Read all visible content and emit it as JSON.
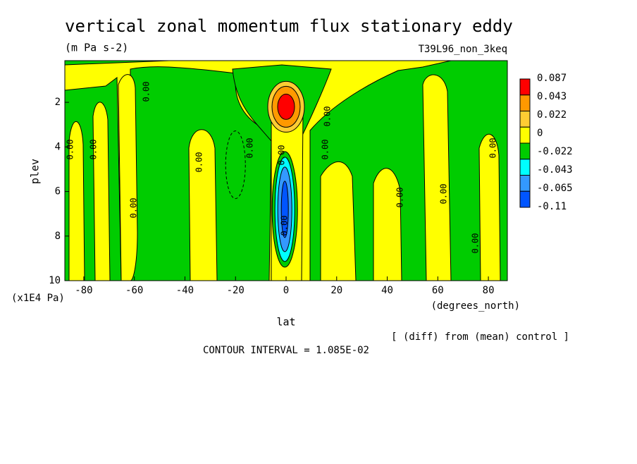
{
  "chart_data": {
    "type": "contour",
    "title": "vertical zonal momentum flux stationary eddy",
    "subtitle": "(m Pa s-2)",
    "run_label": "T39L96_non_3keq",
    "x_label": "lat",
    "x_unit": "(degrees_north)",
    "y_label": "plev",
    "y_unit": "(x1E4 Pa)",
    "note": "[ (diff) from (mean) control ]",
    "contour_interval": "CONTOUR INTERVAL = 1.085E-02",
    "xlim": [
      -87.5,
      87.5
    ],
    "xticks": [
      -80,
      -60,
      -40,
      -20,
      0,
      20,
      40,
      60,
      80
    ],
    "ylim": [
      10,
      0.13
    ],
    "yticks": [
      2,
      4,
      6,
      8,
      10
    ],
    "levels": [
      0.087,
      0.043,
      0.022,
      0,
      -0.022,
      -0.043,
      -0.065,
      -0.11
    ],
    "colors": [
      "#ff0000",
      "#ff9900",
      "#ffcc33",
      "#ffff00",
      "#00cc00",
      "#00ffff",
      "#3399ff",
      "#0055ff"
    ],
    "contour_labels": [
      "0.00",
      "0.00",
      "0.00",
      "0.00",
      "0.00",
      "0.00",
      "0.00",
      "0.00",
      "0.00",
      "0.00",
      "0.00",
      "0.00",
      "0.00",
      "0.00"
    ]
  }
}
